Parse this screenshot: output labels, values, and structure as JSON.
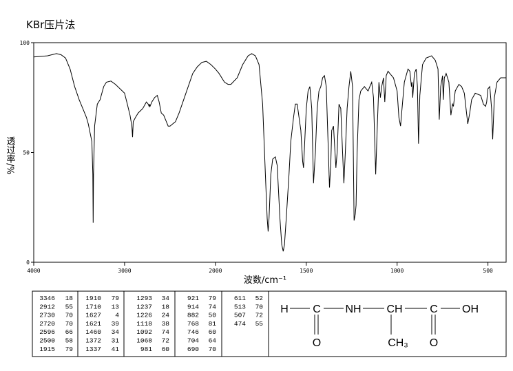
{
  "chart_data": {
    "type": "line",
    "title": "KBr压片法",
    "x_label": "波数/cm⁻¹",
    "y_label": "透过率/%",
    "xlim": [
      4000,
      400
    ],
    "xticks": [
      4000,
      3000,
      2000,
      1500,
      1000,
      500
    ],
    "x_scale_break": 2000,
    "ylim": [
      0,
      100
    ],
    "yticks": [
      0,
      50,
      100
    ],
    "color": "#000000",
    "x": [
      4000,
      3850,
      3750,
      3700,
      3650,
      3600,
      3550,
      3500,
      3450,
      3420,
      3400,
      3380,
      3360,
      3350,
      3346,
      3342,
      3330,
      3300,
      3270,
      3230,
      3200,
      3150,
      3100,
      3050,
      3000,
      2970,
      2940,
      2920,
      2912,
      2905,
      2880,
      2850,
      2800,
      2760,
      2740,
      2730,
      2725,
      2720,
      2700,
      2670,
      2640,
      2620,
      2596,
      2570,
      2540,
      2520,
      2500,
      2470,
      2440,
      2400,
      2350,
      2300,
      2250,
      2200,
      2150,
      2100,
      2050,
      2000,
      1980,
      1950,
      1930,
      1915,
      1880,
      1850,
      1820,
      1800,
      1780,
      1760,
      1740,
      1725,
      1715,
      1710,
      1705,
      1695,
      1685,
      1670,
      1660,
      1645,
      1635,
      1627,
      1620,
      1610,
      1595,
      1585,
      1570,
      1560,
      1550,
      1530,
      1520,
      1515,
      1510,
      1500,
      1490,
      1480,
      1470,
      1460,
      1450,
      1440,
      1430,
      1420,
      1410,
      1400,
      1390,
      1380,
      1372,
      1365,
      1360,
      1350,
      1337,
      1330,
      1320,
      1310,
      1300,
      1293,
      1285,
      1275,
      1265,
      1255,
      1245,
      1237,
      1230,
      1226,
      1220,
      1210,
      1200,
      1180,
      1160,
      1150,
      1140,
      1130,
      1118,
      1110,
      1100,
      1092,
      1085,
      1075,
      1068,
      1060,
      1050,
      1040,
      1020,
      1000,
      990,
      981,
      975,
      960,
      940,
      930,
      921,
      918,
      914,
      905,
      895,
      888,
      882,
      875,
      860,
      840,
      810,
      790,
      775,
      768,
      760,
      750,
      746,
      740,
      730,
      715,
      704,
      695,
      690,
      680,
      660,
      645,
      630,
      611,
      600,
      590,
      570,
      540,
      525,
      513,
      507,
      500,
      490,
      480,
      474,
      465,
      450,
      430,
      400
    ],
    "values": [
      93.5,
      94,
      95,
      94.5,
      93,
      88,
      80,
      74,
      69,
      66,
      63,
      59,
      55,
      40,
      18,
      40,
      62,
      72,
      74,
      80,
      82,
      82.5,
      81,
      79,
      77,
      72,
      67,
      62,
      57,
      64,
      66,
      68,
      70,
      73,
      72,
      71,
      72,
      71,
      73,
      75,
      76,
      73,
      68,
      67,
      64,
      62,
      62,
      63,
      64,
      68,
      74,
      80,
      86,
      89,
      91,
      91.5,
      90,
      88,
      86,
      82,
      81,
      81,
      84,
      90,
      94,
      95,
      94,
      90,
      72,
      40,
      20,
      14,
      20,
      40,
      47,
      48,
      44,
      20,
      8,
      5,
      8,
      20,
      40,
      55,
      66,
      72,
      72,
      60,
      46,
      43,
      52,
      70,
      78,
      80,
      70,
      36,
      50,
      70,
      78,
      80,
      84,
      85,
      80,
      55,
      34,
      45,
      60,
      62,
      43,
      50,
      72,
      70,
      50,
      36,
      50,
      70,
      80,
      87,
      80,
      19,
      22,
      26,
      50,
      74,
      78,
      80,
      78,
      80,
      82,
      75,
      40,
      60,
      82,
      75,
      80,
      84,
      73,
      85,
      87,
      86,
      84,
      78,
      66,
      62,
      68,
      82,
      88,
      87,
      80,
      82,
      75,
      86,
      88,
      80,
      54,
      76,
      90,
      93,
      94,
      92,
      88,
      65,
      80,
      85,
      74,
      84,
      86,
      82,
      67,
      72,
      71,
      78,
      81,
      80,
      77,
      63,
      68,
      74,
      77,
      76,
      72,
      71,
      73,
      79,
      80,
      70,
      56,
      75,
      82,
      84,
      84
    ]
  },
  "peak_table": [
    [
      [
        3346,
        18
      ],
      [
        2912,
        55
      ],
      [
        2730,
        70
      ],
      [
        2720,
        70
      ],
      [
        2596,
        66
      ],
      [
        2500,
        58
      ],
      [
        1915,
        79
      ]
    ],
    [
      [
        1910,
        79
      ],
      [
        1710,
        13
      ],
      [
        1627,
        4
      ],
      [
        1621,
        39
      ],
      [
        1460,
        34
      ],
      [
        1372,
        31
      ],
      [
        1337,
        41
      ]
    ],
    [
      [
        1293,
        34
      ],
      [
        1237,
        18
      ],
      [
        1226,
        24
      ],
      [
        1118,
        38
      ],
      [
        1092,
        74
      ],
      [
        1068,
        72
      ],
      [
        981,
        60
      ]
    ],
    [
      [
        921,
        79
      ],
      [
        914,
        74
      ],
      [
        882,
        50
      ],
      [
        768,
        81
      ],
      [
        746,
        60
      ],
      [
        704,
        64
      ],
      [
        690,
        70
      ]
    ],
    [
      [
        611,
        52
      ],
      [
        513,
        70
      ],
      [
        507,
        72
      ],
      [
        474,
        55
      ]
    ]
  ],
  "structure": {
    "atoms": [
      "H",
      "C",
      "NH",
      "CH",
      "C",
      "OH"
    ],
    "substituents": [
      "O",
      "CH₃",
      "O"
    ]
  }
}
